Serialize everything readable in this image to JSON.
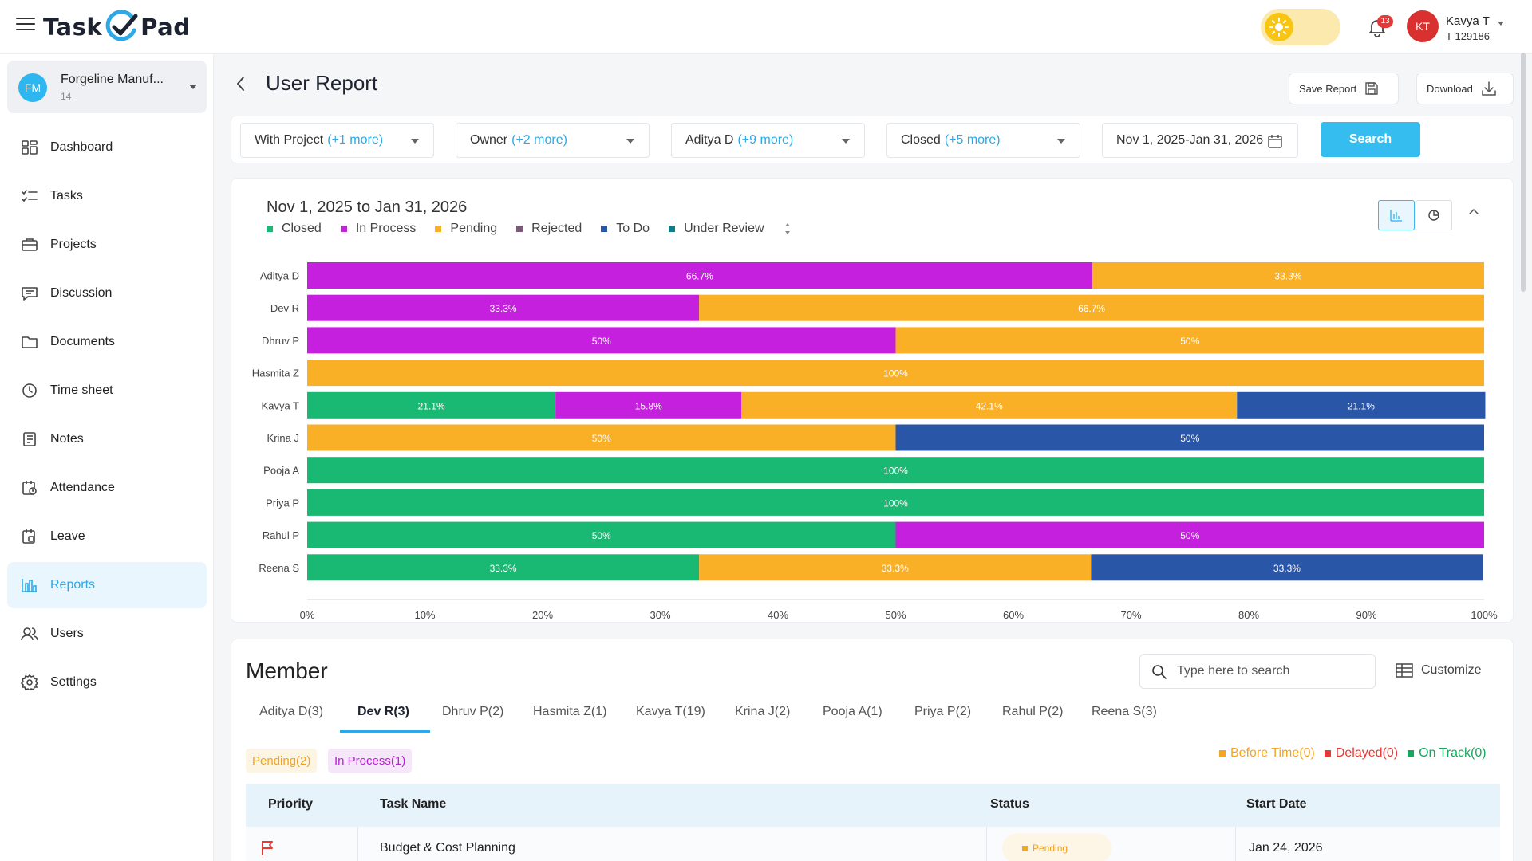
{
  "app": {
    "logo_left": "Task",
    "logo_right": "Pad",
    "notification_count": "13",
    "user": {
      "initials": "KT",
      "name": "Kavya T",
      "id": "T-129186"
    }
  },
  "sidebar": {
    "org": {
      "initials": "FM",
      "name": "Forgeline Manuf...",
      "count": "14"
    },
    "items": [
      {
        "label": "Dashboard",
        "icon": "dashboard-icon"
      },
      {
        "label": "Tasks",
        "icon": "tasks-icon"
      },
      {
        "label": "Projects",
        "icon": "projects-icon"
      },
      {
        "label": "Discussion",
        "icon": "discussion-icon"
      },
      {
        "label": "Documents",
        "icon": "folder-icon"
      },
      {
        "label": "Time sheet",
        "icon": "clock-icon"
      },
      {
        "label": "Notes",
        "icon": "notes-icon"
      },
      {
        "label": "Attendance",
        "icon": "attendance-icon"
      },
      {
        "label": "Leave",
        "icon": "leave-icon"
      },
      {
        "label": "Reports",
        "icon": "reports-icon",
        "active": true
      },
      {
        "label": "Users",
        "icon": "users-icon"
      },
      {
        "label": "Settings",
        "icon": "gear-icon"
      }
    ]
  },
  "header": {
    "title": "User Report",
    "save_label": "Save Report",
    "download_label": "Download"
  },
  "filters": {
    "project": {
      "label": "With Project",
      "more": "(+1 more)"
    },
    "owner": {
      "label": "Owner",
      "more": "(+2 more)"
    },
    "member": {
      "label": "Aditya D",
      "more": "(+9 more)"
    },
    "status": {
      "label": "Closed",
      "more": "(+5 more)"
    },
    "date_range": "Nov 1, 2025-Jan 31, 2026",
    "search_label": "Search"
  },
  "chart": {
    "title": "Nov 1, 2025 to Jan 31, 2026",
    "legend": [
      {
        "name": "Closed",
        "color": "#19b873"
      },
      {
        "name": "In Process",
        "color": "#c520dd"
      },
      {
        "name": "Pending",
        "color": "#f9af26"
      },
      {
        "name": "Rejected",
        "color": "#7d5a7a"
      },
      {
        "name": "To Do",
        "color": "#2a56a8"
      },
      {
        "name": "Under Review",
        "color": "#0e7d86"
      }
    ]
  },
  "chart_data": {
    "type": "bar",
    "orientation": "horizontal",
    "stacked": true,
    "title": "Nov 1, 2025 to Jan 31, 2026",
    "categories": [
      "Aditya D",
      "Dev R",
      "Dhruv P",
      "Hasmita Z",
      "Kavya T",
      "Krina J",
      "Pooja A",
      "Priya P",
      "Rahul P",
      "Reena S"
    ],
    "series": [
      {
        "name": "Closed",
        "color": "#19b873",
        "values": [
          0,
          0,
          0,
          0,
          21.1,
          0,
          100,
          100,
          50,
          33.3
        ]
      },
      {
        "name": "In Process",
        "color": "#c520dd",
        "values": [
          66.7,
          33.3,
          50,
          0,
          15.8,
          0,
          0,
          0,
          50,
          0
        ]
      },
      {
        "name": "Pending",
        "color": "#f9af26",
        "values": [
          33.3,
          66.7,
          50,
          100,
          42.1,
          50,
          0,
          0,
          0,
          33.3
        ]
      },
      {
        "name": "Rejected",
        "color": "#7d5a7a",
        "values": [
          0,
          0,
          0,
          0,
          0,
          0,
          0,
          0,
          0,
          0
        ]
      },
      {
        "name": "To Do",
        "color": "#2a56a8",
        "values": [
          0,
          0,
          0,
          0,
          21.1,
          50,
          0,
          0,
          0,
          33.3
        ]
      },
      {
        "name": "Under Review",
        "color": "#0e7d86",
        "values": [
          0,
          0,
          0,
          0,
          0,
          0,
          0,
          0,
          0,
          0
        ]
      }
    ],
    "xlim": [
      0,
      100
    ],
    "xticks": [
      "0%",
      "10%",
      "20%",
      "30%",
      "40%",
      "50%",
      "60%",
      "70%",
      "80%",
      "90%",
      "100%"
    ],
    "grid": false,
    "legend_position": "top-left"
  },
  "member": {
    "title": "Member",
    "search_placeholder": "Type here to search",
    "customize_label": "Customize",
    "tabs": [
      {
        "label": "Aditya D(3)"
      },
      {
        "label": "Dev R(3)",
        "active": true
      },
      {
        "label": "Dhruv P(2)"
      },
      {
        "label": "Hasmita Z(1)"
      },
      {
        "label": "Kavya T(19)"
      },
      {
        "label": "Krina J(2)"
      },
      {
        "label": "Pooja A(1)"
      },
      {
        "label": "Priya P(2)"
      },
      {
        "label": "Rahul P(2)"
      },
      {
        "label": "Reena S(3)"
      }
    ],
    "chips": {
      "pending": "Pending(2)",
      "in_process": "In Process(1)"
    },
    "status_legend": {
      "before": {
        "label": "Before Time(0)",
        "color": "#f4a521"
      },
      "delayed": {
        "label": "Delayed(0)",
        "color": "#e53935"
      },
      "on_track": {
        "label": "On Track(0)",
        "color": "#19a55f"
      }
    },
    "table": {
      "headers": {
        "priority": "Priority",
        "task": "Task Name",
        "status": "Status",
        "start": "Start Date"
      },
      "rows": [
        {
          "priority_icon": "flag-icon",
          "task": "Budget & Cost Planning",
          "status": "Pending",
          "start": "Jan 24, 2026"
        }
      ]
    }
  }
}
